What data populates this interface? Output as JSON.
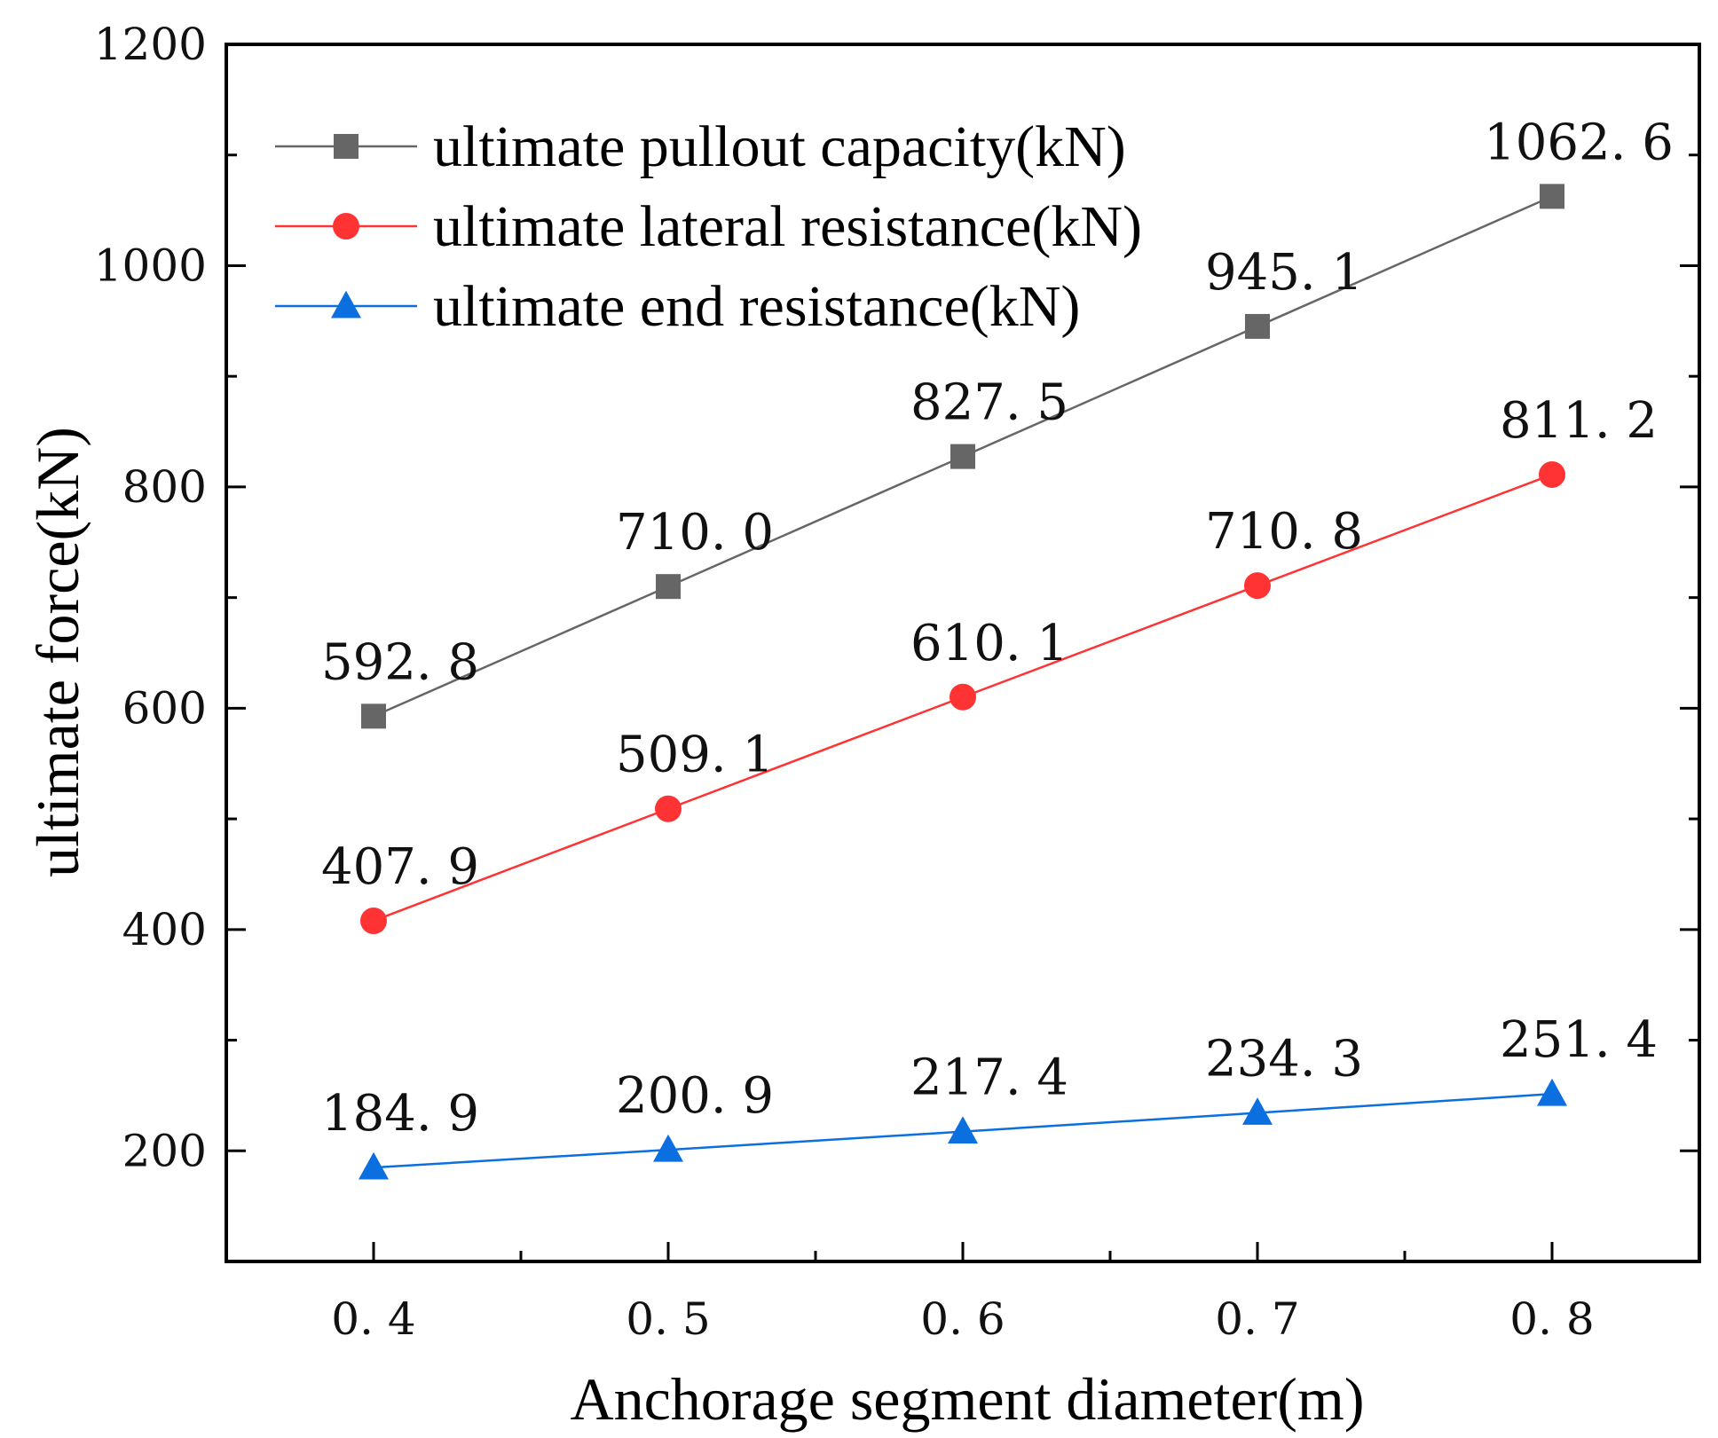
{
  "chart_data": {
    "type": "line",
    "title": "",
    "xlabel": "Anchorage segment diameter(m)",
    "ylabel": "ultimate force(kN)",
    "x": [
      0.4,
      0.5,
      0.6,
      0.7,
      0.8
    ],
    "x_tick_labels": [
      "0. 4",
      "0. 5",
      "0. 6",
      "0. 7",
      "0. 8"
    ],
    "xlim": [
      0.35,
      0.85
    ],
    "ylim": [
      100,
      1200
    ],
    "y_ticks": [
      200,
      400,
      600,
      800,
      1000,
      1200
    ],
    "y_tick_labels": [
      "200",
      "400",
      "600",
      "800",
      "1000",
      "1200"
    ],
    "grid": false,
    "legend_position": "top-left",
    "series": [
      {
        "name": "ultimate pullout capacity(kN)",
        "color": "#666666",
        "marker": "square",
        "values": [
          592.8,
          710.0,
          827.5,
          945.1,
          1062.6
        ],
        "labels": [
          "592. 8",
          "710. 0",
          "827. 5",
          "945. 1",
          "1062. 6"
        ]
      },
      {
        "name": "ultimate lateral resistance(kN)",
        "color": "#ff3333",
        "marker": "circle",
        "values": [
          407.9,
          509.1,
          610.1,
          710.8,
          811.2
        ],
        "labels": [
          "407. 9",
          "509. 1",
          "610. 1",
          "710. 8",
          "811. 2"
        ]
      },
      {
        "name": "ultimate end resistance(kN)",
        "color": "#0b6fe0",
        "marker": "triangle",
        "values": [
          184.9,
          200.9,
          217.4,
          234.3,
          251.4
        ],
        "labels": [
          "184. 9",
          "200. 9",
          "217. 4",
          "234. 3",
          "251. 4"
        ]
      }
    ]
  }
}
